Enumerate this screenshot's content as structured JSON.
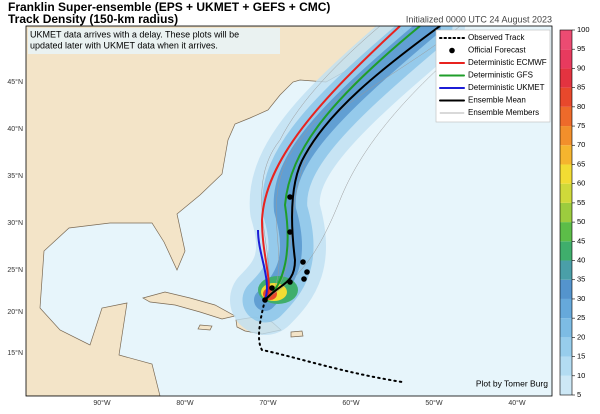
{
  "title": "Franklin Super-ensemble (EPS + UKMET + GEFS + CMC)",
  "subtitle": "Track Density (150-km radius)",
  "initialized": "Initialized 0000 UTC 24 August 2023",
  "note": [
    "UKMET data arrives with a delay. These plots will be",
    "updated later with UKMET data when it arrives."
  ],
  "legend": [
    {
      "label": "Observed Track",
      "color": "#000000",
      "style": "dotted"
    },
    {
      "label": "Official Forecast",
      "color": "#000000",
      "style": "dot"
    },
    {
      "label": "Deterministic ECMWF",
      "color": "#e8231f",
      "style": "line"
    },
    {
      "label": "Deterministic GFS",
      "color": "#1f9e2a",
      "style": "line"
    },
    {
      "label": "Deterministic UKMET",
      "color": "#1c1cd6",
      "style": "line"
    },
    {
      "label": "Ensemble Mean",
      "color": "#000000",
      "style": "line"
    },
    {
      "label": "Ensemble Members",
      "color": "#9a9a9a",
      "style": "thin"
    }
  ],
  "longitude_labels": [
    "90°W",
    "80°W",
    "70°W",
    "60°W",
    "50°W",
    "40°W"
  ],
  "latitude_labels": [
    "45°N",
    "40°N",
    "35°N",
    "30°N",
    "25°N",
    "20°N",
    "15°N"
  ],
  "colorbar": {
    "ticks": [
      5,
      10,
      15,
      20,
      25,
      30,
      35,
      40,
      45,
      50,
      55,
      60,
      65,
      70,
      75,
      80,
      85,
      90,
      95,
      100
    ],
    "colors": [
      "#cde8f6",
      "#b3dcf2",
      "#97cdec",
      "#7dbce4",
      "#66a9db",
      "#5494cd",
      "#4a9fa8",
      "#3fae6c",
      "#5cbd48",
      "#9ccc3e",
      "#cfd93a",
      "#f2dc33",
      "#f5b52e",
      "#f28f2b",
      "#ee6a2a",
      "#e8482c",
      "#e33340",
      "#e83a5e",
      "#ec4b72"
    ]
  },
  "credit": "Plot by Tomer Burg"
}
